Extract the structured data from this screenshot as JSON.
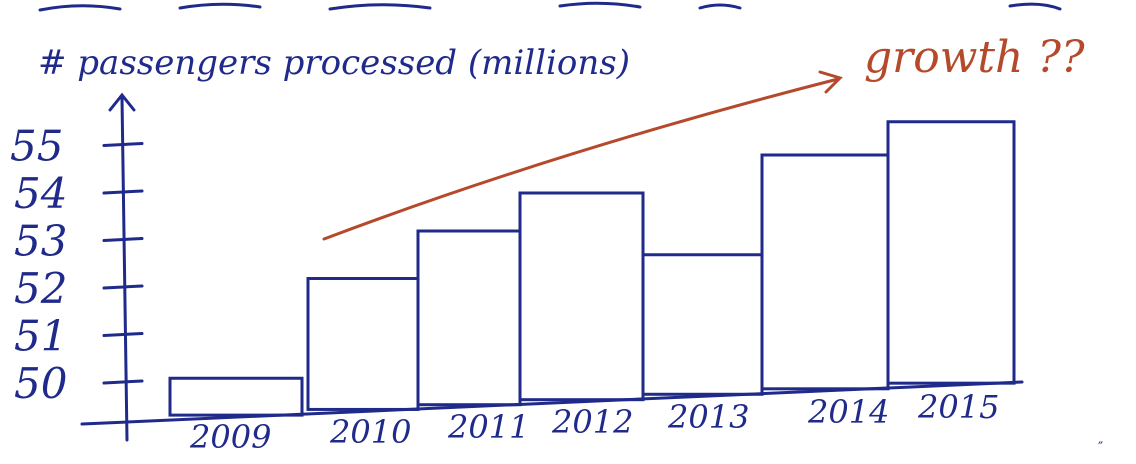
{
  "chart_data": {
    "type": "bar",
    "ylabel": "# passengers processed (millions)",
    "annotation": "growth ??",
    "categories": [
      "2009",
      "2010",
      "2011",
      "2012",
      "2013",
      "2014",
      "2015"
    ],
    "values": [
      50.1,
      52.2,
      53.2,
      54.0,
      52.7,
      54.8,
      55.5
    ],
    "y_ticks": [
      50,
      51,
      52,
      53,
      54,
      55
    ],
    "ylim": [
      50,
      55.6
    ],
    "grid": false,
    "colors": {
      "bars": "#1f2a8a",
      "annotation": "#b5492c"
    }
  }
}
